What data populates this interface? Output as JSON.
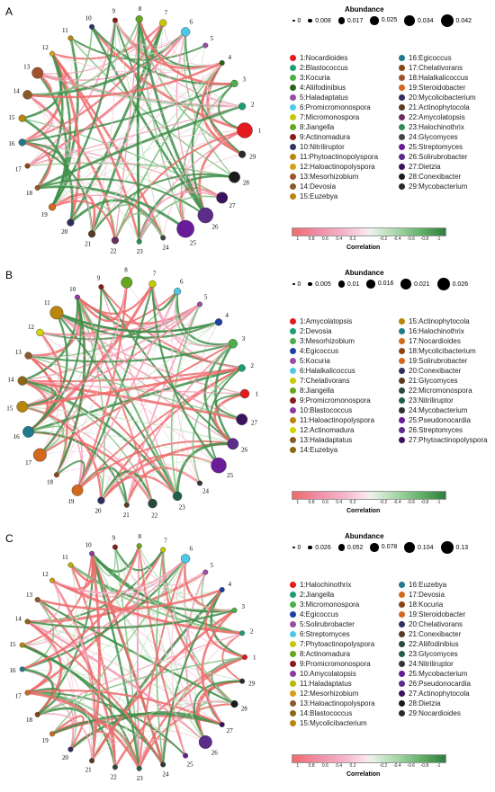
{
  "panels": [
    {
      "label": "A",
      "abundance_title": "Abundance",
      "abundance_values": [
        "0",
        "0.008",
        "0.017",
        "0.025",
        "0.034",
        "0.042"
      ],
      "correlation_title": "Correlation",
      "colorbar_ticks": [
        "1",
        "0.8",
        "0.6",
        "0.4",
        "0.2",
        "-0.2",
        "-0.4",
        "-0.6",
        "-0.8",
        "-1"
      ],
      "nodes": [
        {
          "id": "1",
          "name": "1:Nocardioides",
          "color": "#e41a1c",
          "size": 6
        },
        {
          "id": "2",
          "name": "2:Blastococcus",
          "color": "#1b9e77",
          "size": 2
        },
        {
          "id": "3",
          "name": "3:Kocuria",
          "color": "#4daf4a",
          "size": 2
        },
        {
          "id": "4",
          "name": "4:Aliifodinibius",
          "color": "#276419",
          "size": 1
        },
        {
          "id": "5",
          "name": "5:Haladaptatus",
          "color": "#984ea3",
          "size": 1
        },
        {
          "id": "6",
          "name": "6:Promicromonospora",
          "color": "#4dc9e6",
          "size": 3
        },
        {
          "id": "7",
          "name": "7:Micromonospora",
          "color": "#c8c800",
          "size": 2
        },
        {
          "id": "8",
          "name": "8:Jiangella",
          "color": "#66a61e",
          "size": 2
        },
        {
          "id": "9",
          "name": "9:Actinomadura",
          "color": "#8b1a1a",
          "size": 1
        },
        {
          "id": "10",
          "name": "10:Nitriliruptor",
          "color": "#333366",
          "size": 1
        },
        {
          "id": "11",
          "name": "11:Phytoactinopolyspora",
          "color": "#b8860b",
          "size": 1
        },
        {
          "id": "12",
          "name": "12:Haloactinopolyspora",
          "color": "#d4a017",
          "size": 1
        },
        {
          "id": "13",
          "name": "13:Mesorhizobium",
          "color": "#a0522d",
          "size": 4
        },
        {
          "id": "14",
          "name": "14:Devosia",
          "color": "#8b5a2b",
          "size": 3
        },
        {
          "id": "15",
          "name": "15:Euzebya",
          "color": "#b8860b",
          "size": 2
        },
        {
          "id": "16",
          "name": "16:Egicoccus",
          "color": "#1f7a8c",
          "size": 2
        },
        {
          "id": "17",
          "name": "17:Chelativorans",
          "color": "#8b4513",
          "size": 1
        },
        {
          "id": "18",
          "name": "18:Halalkalicoccus",
          "color": "#a0522d",
          "size": 1
        },
        {
          "id": "19",
          "name": "19:Steroidobacter",
          "color": "#d2691e",
          "size": 2
        },
        {
          "id": "20",
          "name": "20:Mycolicibacterium",
          "color": "#2f2f5f",
          "size": 2
        },
        {
          "id": "21",
          "name": "21:Actinophytocola",
          "color": "#5c3a21",
          "size": 2
        },
        {
          "id": "22",
          "name": "22:Amycolatopsis",
          "color": "#6b2d5c",
          "size": 2
        },
        {
          "id": "23",
          "name": "23:Halochinothrix",
          "color": "#2e8b57",
          "size": 1
        },
        {
          "id": "24",
          "name": "24:Glycomyces",
          "color": "#444444",
          "size": 1
        },
        {
          "id": "25",
          "name": "25:Streptomyces",
          "color": "#6a1b9a",
          "size": 7
        },
        {
          "id": "26",
          "name": "26:Solirubrobacter",
          "color": "#5b2c8a",
          "size": 6
        },
        {
          "id": "27",
          "name": "27:Dietzia",
          "color": "#3c1361",
          "size": 4
        },
        {
          "id": "28",
          "name": "28:Conexibacter",
          "color": "#1c1c1c",
          "size": 4
        },
        {
          "id": "29",
          "name": "29:Mycobacterium",
          "color": "#2b2b2b",
          "size": 2
        }
      ]
    },
    {
      "label": "B",
      "abundance_title": "Abundance",
      "abundance_values": [
        "0",
        "0.005",
        "0.01",
        "0.016",
        "0.021",
        "0.026"
      ],
      "correlation_title": "Correlation",
      "colorbar_ticks": [
        "1",
        "0.8",
        "0.6",
        "0.4",
        "0.2",
        "-0.2",
        "-0.4",
        "-0.6",
        "-0.8",
        "-1"
      ],
      "nodes": [
        {
          "id": "1",
          "name": "1:Amycolatopsis",
          "color": "#e41a1c",
          "size": 3
        },
        {
          "id": "2",
          "name": "2:Devosia",
          "color": "#1b9e77",
          "size": 2
        },
        {
          "id": "3",
          "name": "3:Mesorhizobium",
          "color": "#4daf4a",
          "size": 3
        },
        {
          "id": "4",
          "name": "4:Egicoccus",
          "color": "#1f3fa6",
          "size": 2
        },
        {
          "id": "5",
          "name": "5:Kocuria",
          "color": "#984ea3",
          "size": 1
        },
        {
          "id": "6",
          "name": "6:Halalkalicoccus",
          "color": "#4dc9e6",
          "size": 2
        },
        {
          "id": "7",
          "name": "7:Chelativorans",
          "color": "#c8c800",
          "size": 2
        },
        {
          "id": "8",
          "name": "8:Jiangella",
          "color": "#66a61e",
          "size": 4
        },
        {
          "id": "9",
          "name": "9:Promicromonospora",
          "color": "#8b1a1a",
          "size": 1
        },
        {
          "id": "10",
          "name": "10:Blastococcus",
          "color": "#8e3aa0",
          "size": 1
        },
        {
          "id": "11",
          "name": "11:Haloactinopolyspora",
          "color": "#b8860b",
          "size": 5
        },
        {
          "id": "12",
          "name": "12:Actinomadura",
          "color": "#d4d400",
          "size": 2
        },
        {
          "id": "13",
          "name": "13:Haladaptatus",
          "color": "#8b5a2b",
          "size": 2
        },
        {
          "id": "14",
          "name": "14:Euzebya",
          "color": "#8b6914",
          "size": 3
        },
        {
          "id": "15",
          "name": "15:Actinophytocola",
          "color": "#b8860b",
          "size": 4
        },
        {
          "id": "16",
          "name": "16:Halochinothrix",
          "color": "#1f7a8c",
          "size": 4
        },
        {
          "id": "17",
          "name": "17:Nocardioides",
          "color": "#d2691e",
          "size": 5
        },
        {
          "id": "18",
          "name": "18:Mycolicibacterium",
          "color": "#8b4513",
          "size": 1
        },
        {
          "id": "19",
          "name": "19:Solirubrobacter",
          "color": "#d2691e",
          "size": 4
        },
        {
          "id": "20",
          "name": "20:Conexibacter",
          "color": "#2f2f5f",
          "size": 2
        },
        {
          "id": "21",
          "name": "21:Glycomyces",
          "color": "#5c3a21",
          "size": 1
        },
        {
          "id": "22",
          "name": "22:Micromonospora",
          "color": "#2b4a3a",
          "size": 3
        },
        {
          "id": "23",
          "name": "23:Nitriliruptor",
          "color": "#1f5f4f",
          "size": 3
        },
        {
          "id": "24",
          "name": "24:Mycobacterium",
          "color": "#333333",
          "size": 1
        },
        {
          "id": "25",
          "name": "25:Pseudonocardia",
          "color": "#6a1b9a",
          "size": 6
        },
        {
          "id": "26",
          "name": "26:Streptomyces",
          "color": "#5b2c8a",
          "size": 4
        },
        {
          "id": "27",
          "name": "27:Phytoactinopolyspora",
          "color": "#3c1361",
          "size": 4
        }
      ]
    },
    {
      "label": "C",
      "abundance_title": "Abundance",
      "abundance_values": [
        "0",
        "0.026",
        "0.052",
        "0.078",
        "0.104",
        "0.13"
      ],
      "correlation_title": "Correlation",
      "colorbar_ticks": [
        "1",
        "0.8",
        "0.6",
        "0.4",
        "0.2",
        "-0.2",
        "-0.4",
        "-0.6",
        "-0.8",
        "-1"
      ],
      "nodes": [
        {
          "id": "1",
          "name": "1:Halochinothrix",
          "color": "#e41a1c",
          "size": 1
        },
        {
          "id": "2",
          "name": "2:Jiangella",
          "color": "#1b9e77",
          "size": 1
        },
        {
          "id": "3",
          "name": "3:Micromonospora",
          "color": "#4daf4a",
          "size": 1
        },
        {
          "id": "4",
          "name": "4:Egicoccus",
          "color": "#1f3fa6",
          "size": 1
        },
        {
          "id": "5",
          "name": "5:Solirubrobacter",
          "color": "#984ea3",
          "size": 1
        },
        {
          "id": "6",
          "name": "6:Streptomyces",
          "color": "#4dc9e6",
          "size": 3
        },
        {
          "id": "7",
          "name": "7:Phytoactinopolyspora",
          "color": "#c8c800",
          "size": 1
        },
        {
          "id": "8",
          "name": "8:Actinomadura",
          "color": "#66a61e",
          "size": 1
        },
        {
          "id": "9",
          "name": "9:Promicromonospora",
          "color": "#8b1a1a",
          "size": 1
        },
        {
          "id": "10",
          "name": "10:Amycolatopsis",
          "color": "#8e3aa0",
          "size": 1
        },
        {
          "id": "11",
          "name": "11:Haladaptatus",
          "color": "#b8b800",
          "size": 1
        },
        {
          "id": "12",
          "name": "12:Mesorhizobium",
          "color": "#d4a017",
          "size": 1
        },
        {
          "id": "13",
          "name": "13:Haloactinopolyspora",
          "color": "#8b5a2b",
          "size": 1
        },
        {
          "id": "14",
          "name": "14:Blastococcus",
          "color": "#8b6914",
          "size": 1
        },
        {
          "id": "15",
          "name": "15:Mycolicibacterium",
          "color": "#b8860b",
          "size": 1
        },
        {
          "id": "16",
          "name": "16:Euzebya",
          "color": "#1f7a8c",
          "size": 1
        },
        {
          "id": "17",
          "name": "17:Devosia",
          "color": "#d2691e",
          "size": 1
        },
        {
          "id": "18",
          "name": "18:Kocuria",
          "color": "#8b4513",
          "size": 1
        },
        {
          "id": "19",
          "name": "19:Steroidobacter",
          "color": "#d2691e",
          "size": 1
        },
        {
          "id": "20",
          "name": "20:Chelativorans",
          "color": "#2f2f5f",
          "size": 1
        },
        {
          "id": "21",
          "name": "21:Conexibacter",
          "color": "#5c3a21",
          "size": 1
        },
        {
          "id": "22",
          "name": "22:Aliifodinibius",
          "color": "#2b4a3a",
          "size": 1
        },
        {
          "id": "23",
          "name": "23:Glycomyces",
          "color": "#1f5f4f",
          "size": 1
        },
        {
          "id": "24",
          "name": "24:Nitriliruptor",
          "color": "#333333",
          "size": 1
        },
        {
          "id": "25",
          "name": "25:Mycobacterium",
          "color": "#6a1b9a",
          "size": 1
        },
        {
          "id": "26",
          "name": "26:Pseudonocardia",
          "color": "#5b2c8a",
          "size": 5
        },
        {
          "id": "27",
          "name": "27:Actinophytocola",
          "color": "#3c1361",
          "size": 1
        },
        {
          "id": "28",
          "name": "28:Dietzia",
          "color": "#1c1c1c",
          "size": 2
        },
        {
          "id": "29",
          "name": "29:Nocardioides",
          "color": "#2b2b2b",
          "size": 1
        }
      ]
    }
  ]
}
